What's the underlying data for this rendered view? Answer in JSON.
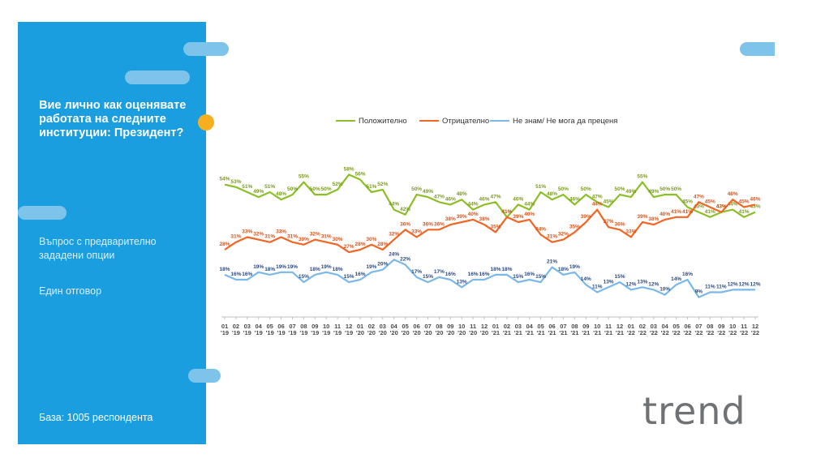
{
  "slide": {
    "question": "Вие лично как оценявате работата на следните институции: Президент?",
    "note_1": "Въпрос с предварително зададени опции",
    "note_2": "Един отговор",
    "base": "База:  1005 респондента",
    "logo": "trend"
  },
  "colors": {
    "sidebar": "#1b9ee0",
    "accent_pill": "#7ec3ea",
    "accent_dot": "#f7ae1f",
    "positive": "#8cbf26",
    "negative": "#f26522",
    "dont_know": "#7ab8ea"
  },
  "chart_data": {
    "type": "line",
    "legend_position": "top",
    "categories": [
      "01 '19",
      "02 '19",
      "03 '19",
      "04 '19",
      "05 '19",
      "06 '19",
      "07 '19",
      "08 '19",
      "09 '19",
      "10 '19",
      "11 '19",
      "12 '19",
      "01 '20",
      "02 '20",
      "03 '20",
      "04 '20",
      "05 '20",
      "06 '20",
      "07 '20",
      "08 '20",
      "09 '20",
      "10 '20",
      "11 '20",
      "12 '20",
      "01 '21",
      "02 '21",
      "03 '21",
      "04 '21",
      "05 '21",
      "06 '21",
      "07 '21",
      "08 '21",
      "09 '21",
      "10 '21",
      "11 '21",
      "12 '21",
      "01 '22",
      "02 '22",
      "03 '22",
      "04 '22",
      "05 '22",
      "06 '22",
      "07 '22",
      "08 '22",
      "09 '22",
      "10 '22",
      "11 '22",
      "12 '22"
    ],
    "ylim": [
      5,
      62
    ],
    "series": [
      {
        "name": "Положително",
        "color": "#8cbf26",
        "values": [
          54,
          53,
          51,
          49,
          51,
          48,
          50,
          55,
          50,
          50,
          52,
          58,
          56,
          51,
          52,
          44,
          42,
          50,
          49,
          47,
          46,
          48,
          44,
          46,
          47,
          41,
          46,
          44,
          51,
          48,
          50,
          46,
          50,
          47,
          45,
          50,
          49,
          55,
          49,
          50,
          50,
          45,
          43,
          41,
          43,
          44,
          41,
          43
        ]
      },
      {
        "name": "Отрицателно",
        "color": "#f26522",
        "values": [
          28,
          31,
          33,
          32,
          31,
          33,
          31,
          30,
          32,
          31,
          30,
          27,
          28,
          30,
          28,
          32,
          36,
          33,
          36,
          36,
          38,
          39,
          40,
          38,
          35,
          41,
          39,
          40,
          34,
          31,
          32,
          35,
          39,
          44,
          37,
          36,
          33,
          39,
          38,
          40,
          41,
          41,
          47,
          45,
          43,
          48,
          45,
          46
        ]
      },
      {
        "name": "Не знам/ Не мога да преценя",
        "color": "#7ab8ea",
        "values": [
          18,
          16,
          16,
          19,
          18,
          19,
          19,
          15,
          18,
          19,
          18,
          15,
          16,
          19,
          20,
          24,
          22,
          17,
          15,
          17,
          16,
          13,
          16,
          16,
          18,
          18,
          15,
          16,
          15,
          21,
          18,
          19,
          14,
          11,
          13,
          15,
          12,
          13,
          12,
          10,
          14,
          16,
          9,
          11,
          11,
          12,
          12,
          12
        ]
      }
    ]
  }
}
